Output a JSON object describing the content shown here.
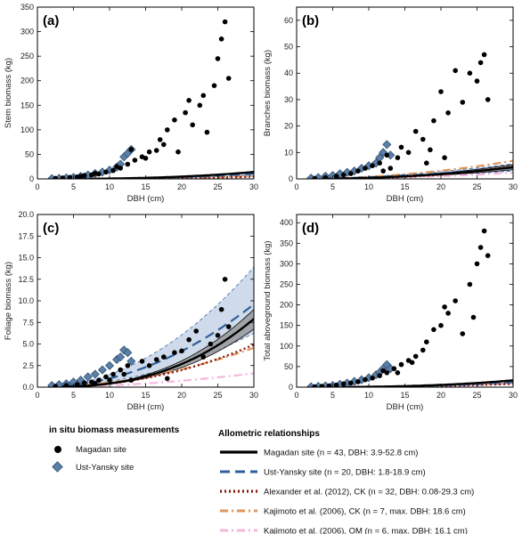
{
  "chart_data": [
    {
      "type": "scatter",
      "label": "(a)",
      "xlabel": "DBH (cm)",
      "ylabel": "Stem biomass (kg)",
      "xlim": [
        0,
        30
      ],
      "ylim": [
        0,
        350
      ],
      "xticks": [
        0,
        5,
        10,
        15,
        20,
        25,
        30
      ],
      "yticks": [
        0,
        50,
        100,
        150,
        200,
        250,
        300,
        350
      ],
      "curves": {
        "magadan": {
          "a": 0.00145,
          "b": 2.7
        },
        "ust": {
          "a": 0.0011,
          "b": 2.7
        },
        "alexander": {
          "a": 0.00046,
          "b": 2.7
        },
        "kajimoto_ck": {
          "a": 0.0022,
          "b": 2.3
        }
      },
      "bands": {
        "magadan": {
          "lower": 0.93,
          "upper": 1.09
        },
        "ust": {
          "lower": 0.75,
          "upper": 1.25
        }
      },
      "points_magadan": [
        [
          2.5,
          1
        ],
        [
          3.5,
          2
        ],
        [
          4.5,
          3
        ],
        [
          5.5,
          4
        ],
        [
          6.5,
          7
        ],
        [
          7.5,
          8
        ],
        [
          8.5,
          10
        ],
        [
          9.5,
          14
        ],
        [
          10.5,
          17
        ],
        [
          11.5,
          22
        ],
        [
          12.5,
          30
        ],
        [
          13.5,
          38
        ],
        [
          14.5,
          45
        ],
        [
          15.5,
          55
        ],
        [
          16.5,
          58
        ],
        [
          17.5,
          70
        ],
        [
          18.0,
          100
        ],
        [
          19.0,
          120
        ],
        [
          20.5,
          135
        ],
        [
          21.5,
          110
        ],
        [
          22.5,
          150
        ],
        [
          23.5,
          95
        ],
        [
          24.5,
          190
        ],
        [
          25.0,
          245
        ],
        [
          25.5,
          285
        ],
        [
          26.0,
          320
        ],
        [
          26.5,
          205
        ],
        [
          13.0,
          60
        ],
        [
          15.0,
          42
        ],
        [
          17.0,
          80
        ],
        [
          19.5,
          55
        ],
        [
          21.0,
          160
        ],
        [
          23.0,
          170
        ],
        [
          11.0,
          25
        ],
        [
          8.0,
          11
        ],
        [
          6.0,
          5
        ]
      ],
      "points_ust": [
        [
          2.0,
          0.5
        ],
        [
          3.0,
          1
        ],
        [
          4.0,
          2
        ],
        [
          5.0,
          3
        ],
        [
          6.0,
          5
        ],
        [
          7.0,
          8
        ],
        [
          8.0,
          11
        ],
        [
          9.0,
          14
        ],
        [
          10.0,
          18
        ],
        [
          11.0,
          24
        ],
        [
          11.5,
          30
        ],
        [
          12.0,
          45
        ],
        [
          12.5,
          52
        ],
        [
          13.0,
          60
        ]
      ]
    },
    {
      "type": "scatter",
      "label": "(b)",
      "xlabel": "DBH (cm)",
      "ylabel": "Branches biomass (kg)",
      "xlim": [
        0,
        30
      ],
      "ylim": [
        0,
        65
      ],
      "xticks": [
        0,
        5,
        10,
        15,
        20,
        25,
        30
      ],
      "yticks": [
        0,
        10,
        20,
        30,
        40,
        50,
        60
      ],
      "curves": {
        "magadan": {
          "a": 0.0025,
          "b": 2.2
        },
        "ust": {
          "a": 0.011,
          "b": 1.75
        },
        "alexander": {
          "a": 0.0008,
          "b": 2.55
        },
        "kajimoto_ck": {
          "a": 0.009,
          "b": 1.95
        },
        "kajimoto_om": {
          "a": 0.0026,
          "b": 2.0
        }
      },
      "bands": {
        "magadan": {
          "lower": 0.78,
          "upper": 1.22
        },
        "ust": {
          "lower": 0.7,
          "upper": 1.35
        }
      },
      "points_magadan": [
        [
          2.5,
          0.2
        ],
        [
          4.0,
          0.5
        ],
        [
          5.5,
          1
        ],
        [
          6.5,
          1.5
        ],
        [
          7.5,
          2
        ],
        [
          8.5,
          3
        ],
        [
          9.5,
          4
        ],
        [
          10.5,
          5
        ],
        [
          11.5,
          6
        ],
        [
          12.5,
          9
        ],
        [
          13.0,
          4
        ],
        [
          14.5,
          12
        ],
        [
          15.5,
          10
        ],
        [
          16.5,
          18
        ],
        [
          17.5,
          15
        ],
        [
          18.0,
          6
        ],
        [
          19.0,
          22
        ],
        [
          20.0,
          33
        ],
        [
          21.0,
          25
        ],
        [
          22.0,
          41
        ],
        [
          23.0,
          29
        ],
        [
          24.0,
          40
        ],
        [
          25.0,
          37
        ],
        [
          25.5,
          44
        ],
        [
          26.0,
          47
        ],
        [
          26.5,
          30
        ],
        [
          20.5,
          8
        ],
        [
          18.5,
          11
        ],
        [
          14.0,
          8
        ],
        [
          12.0,
          3
        ]
      ],
      "points_ust": [
        [
          2.0,
          0.3
        ],
        [
          3.0,
          0.5
        ],
        [
          4.0,
          1
        ],
        [
          5.0,
          1.3
        ],
        [
          6.0,
          2
        ],
        [
          7.0,
          2.5
        ],
        [
          8.0,
          3
        ],
        [
          9.0,
          4
        ],
        [
          10.0,
          5
        ],
        [
          11.0,
          6
        ],
        [
          11.5,
          8
        ],
        [
          12.0,
          10
        ],
        [
          12.5,
          13
        ],
        [
          13.0,
          9
        ]
      ]
    },
    {
      "type": "scatter",
      "label": "(c)",
      "xlabel": "DBH (cm)",
      "ylabel": "Foliage biomass (kg)",
      "xlim": [
        0,
        30
      ],
      "ylim": [
        0,
        20
      ],
      "xticks": [
        0,
        5,
        10,
        15,
        20,
        25,
        30
      ],
      "yticks": [
        0,
        2.5,
        5.0,
        7.5,
        10.0,
        12.5,
        15.0,
        17.5,
        20.0
      ],
      "curves": {
        "magadan": {
          "a": 0.0009,
          "b": 2.67
        },
        "ust": {
          "a": 0.009,
          "b": 2.05
        },
        "alexander": {
          "a": 0.0025,
          "b": 2.23
        },
        "kajimoto_ck": {
          "a": 0.006,
          "b": 1.95
        },
        "kajimoto_om": {
          "a": 0.0025,
          "b": 1.9
        }
      },
      "bands": {
        "magadan": {
          "lower": 0.85,
          "upper": 1.14
        },
        "ust": {
          "lower": 0.65,
          "upper": 1.45
        }
      },
      "points_magadan": [
        [
          2.5,
          0.1
        ],
        [
          4.0,
          0.2
        ],
        [
          5.5,
          0.3
        ],
        [
          6.5,
          0.5
        ],
        [
          7.5,
          0.6
        ],
        [
          8.5,
          0.8
        ],
        [
          9.5,
          1.2
        ],
        [
          10.5,
          1.5
        ],
        [
          11.5,
          2.0
        ],
        [
          12.5,
          2.5
        ],
        [
          13.0,
          0.8
        ],
        [
          14.5,
          3.0
        ],
        [
          15.5,
          2.5
        ],
        [
          16.5,
          3.2
        ],
        [
          17.5,
          3.5
        ],
        [
          18.0,
          1.0
        ],
        [
          19.0,
          4.0
        ],
        [
          20.0,
          4.2
        ],
        [
          21.0,
          5.5
        ],
        [
          22.0,
          6.5
        ],
        [
          23.0,
          3.5
        ],
        [
          24.0,
          5.0
        ],
        [
          25.0,
          6.0
        ],
        [
          25.5,
          9.0
        ],
        [
          26.0,
          12.5
        ],
        [
          26.5,
          7.0
        ],
        [
          12.0,
          1.5
        ],
        [
          10.0,
          0.8
        ],
        [
          8.0,
          0.4
        ]
      ],
      "points_ust": [
        [
          2.0,
          0.2
        ],
        [
          3.0,
          0.3
        ],
        [
          4.0,
          0.4
        ],
        [
          5.0,
          0.6
        ],
        [
          6.0,
          0.8
        ],
        [
          7.0,
          1.2
        ],
        [
          8.0,
          1.5
        ],
        [
          9.0,
          2.0
        ],
        [
          10.0,
          2.5
        ],
        [
          11.0,
          3.2
        ],
        [
          11.5,
          3.5
        ],
        [
          12.0,
          4.3
        ],
        [
          12.5,
          4.0
        ],
        [
          13.0,
          3.0
        ]
      ]
    },
    {
      "type": "scatter",
      "label": "(d)",
      "xlabel": "DBH (cm)",
      "ylabel": "Total aboveground biomass (kg)",
      "xlim": [
        0,
        30
      ],
      "ylim": [
        0,
        420
      ],
      "xticks": [
        0,
        5,
        10,
        15,
        20,
        25,
        30
      ],
      "yticks": [
        0,
        50,
        100,
        150,
        200,
        250,
        300,
        350,
        400
      ],
      "curves": {
        "magadan": {
          "a": 0.0017,
          "b": 2.7
        },
        "ust": {
          "a": 0.0013,
          "b": 2.7
        },
        "alexander": {
          "a": 0.0014,
          "b": 2.55
        },
        "kajimoto_ck": {
          "a": 0.0052,
          "b": 2.25
        },
        "kajimoto_om": {
          "a": 0.004,
          "b": 2.25
        }
      },
      "bands": {
        "magadan": {
          "lower": 0.93,
          "upper": 1.09
        },
        "ust": {
          "lower": 0.75,
          "upper": 1.25
        }
      },
      "points_magadan": [
        [
          2.5,
          1
        ],
        [
          3.5,
          2
        ],
        [
          4.5,
          3
        ],
        [
          5.5,
          5
        ],
        [
          6.5,
          8
        ],
        [
          7.5,
          10
        ],
        [
          8.5,
          13
        ],
        [
          9.5,
          18
        ],
        [
          10.5,
          22
        ],
        [
          11.5,
          28
        ],
        [
          12.5,
          35
        ],
        [
          13.5,
          45
        ],
        [
          14.5,
          55
        ],
        [
          15.5,
          65
        ],
        [
          16.5,
          75
        ],
        [
          17.5,
          90
        ],
        [
          18.0,
          110
        ],
        [
          19.0,
          140
        ],
        [
          20.0,
          150
        ],
        [
          20.5,
          195
        ],
        [
          21.0,
          180
        ],
        [
          22.0,
          210
        ],
        [
          23.0,
          130
        ],
        [
          24.0,
          250
        ],
        [
          24.5,
          170
        ],
        [
          25.0,
          300
        ],
        [
          25.5,
          340
        ],
        [
          26.0,
          380
        ],
        [
          26.5,
          320
        ],
        [
          12.0,
          40
        ],
        [
          14.0,
          35
        ],
        [
          16.0,
          60
        ]
      ],
      "points_ust": [
        [
          2.0,
          1
        ],
        [
          3.0,
          2
        ],
        [
          4.0,
          3
        ],
        [
          5.0,
          4
        ],
        [
          6.0,
          7
        ],
        [
          7.0,
          10
        ],
        [
          8.0,
          14
        ],
        [
          9.0,
          18
        ],
        [
          10.0,
          23
        ],
        [
          11.0,
          30
        ],
        [
          11.5,
          36
        ],
        [
          12.0,
          45
        ],
        [
          12.5,
          55
        ],
        [
          13.0,
          45
        ]
      ]
    }
  ],
  "legend": {
    "left_title": "in situ biomass measurements",
    "magadan_site": "Magadan site",
    "ust_site": "Ust-Yansky site",
    "right_title": "Allometric relationships",
    "entries": [
      {
        "key": "magadan",
        "text": "Magadan site (n = 43, DBH: 3.9-52.8 cm)",
        "color": "#000000"
      },
      {
        "key": "ust",
        "text": "Ust-Yansky site (n = 20, DBH: 1.8-18.9 cm)",
        "color": "#2e5f99"
      },
      {
        "key": "alexander",
        "text": "Alexander et al. (2012), CK (n = 32, DBH: 0.08-29.3 cm)",
        "color": "#8b1a10"
      },
      {
        "key": "kajimoto_ck",
        "text": "Kajimoto et al. (2006), CK (n = 7, max. DBH: 18.6 cm)",
        "color": "#e0955a"
      },
      {
        "key": "kajimoto_om",
        "text": "Kajimoto et al. (2006), OM (n = 6, max. DBH: 16.1 cm)",
        "color": "#f5b6dd"
      }
    ]
  },
  "colors": {
    "magadan_band": "#8f8f8f",
    "ust_band": "#c7d4e6",
    "ust_band_edge": "#4a78b5",
    "ust_marker": "#5b7fa6"
  }
}
